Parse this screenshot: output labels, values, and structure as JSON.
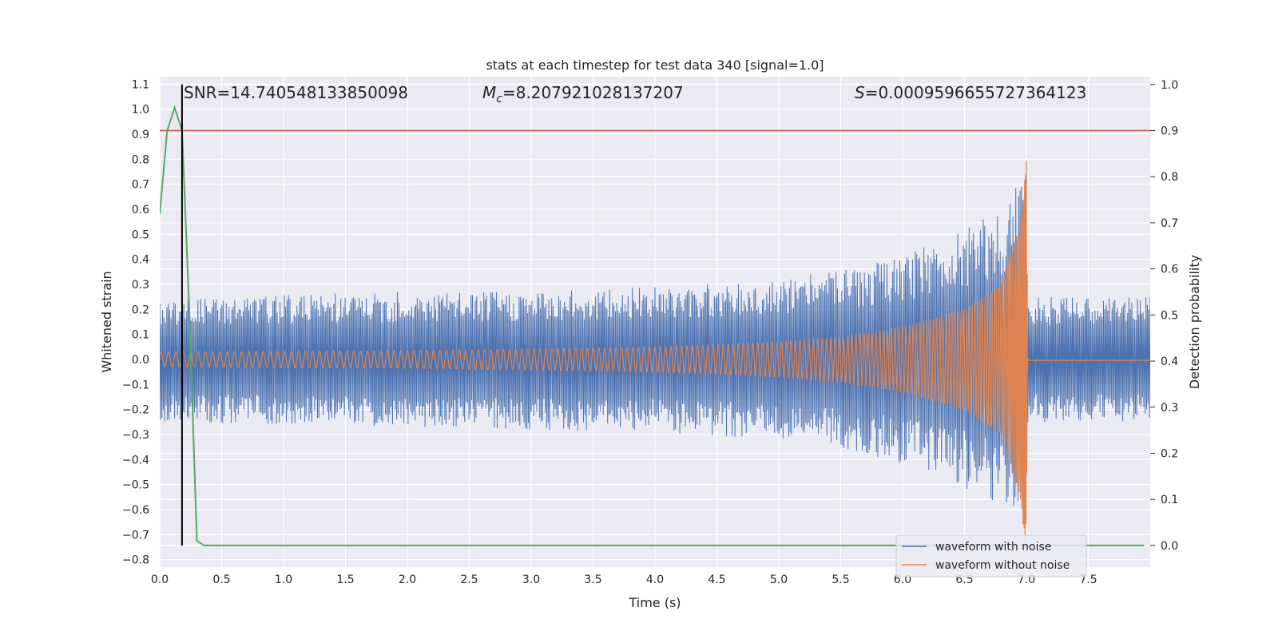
{
  "chart_data": {
    "type": "line",
    "title": "stats at each timestep for test data 340 [signal=1.0]",
    "xlabel": "Time (s)",
    "ylabel": "Whitened strain",
    "y2label": "Detection probability",
    "xlim": [
      0.0,
      8.0
    ],
    "ylim": [
      -0.83,
      1.13
    ],
    "y2lim": [
      -0.047,
      1.017
    ],
    "grid": true,
    "x_ticks": [
      0.0,
      0.5,
      1.0,
      1.5,
      2.0,
      2.5,
      3.0,
      3.5,
      4.0,
      4.5,
      5.0,
      5.5,
      6.0,
      6.5,
      7.0,
      7.5
    ],
    "x_tick_labels": [
      "0.0",
      "0.5",
      "1.0",
      "1.5",
      "2.0",
      "2.5",
      "3.0",
      "3.5",
      "4.0",
      "4.5",
      "5.0",
      "5.5",
      "6.0",
      "6.5",
      "7.0",
      "7.5"
    ],
    "y_ticks": [
      1.1,
      1.0,
      0.9,
      0.8,
      0.7,
      0.6,
      0.5,
      0.4,
      0.3,
      0.2,
      0.1,
      0.0,
      -0.1,
      -0.2,
      -0.3,
      -0.4,
      -0.5,
      -0.6,
      -0.7,
      -0.8
    ],
    "y_tick_labels": [
      "1.1",
      "1.0",
      "0.9",
      "0.8",
      "0.7",
      "0.6",
      "0.5",
      "0.4",
      "0.3",
      "0.2",
      "0.1",
      "0.0",
      "−0.1",
      "−0.2",
      "−0.3",
      "−0.4",
      "−0.5",
      "−0.6",
      "−0.7",
      "−0.8"
    ],
    "y2_ticks": [
      1.0,
      0.9,
      0.8,
      0.7,
      0.6,
      0.5,
      0.4,
      0.3,
      0.2,
      0.1,
      0.0
    ],
    "y2_tick_labels": [
      "1.0",
      "0.9",
      "0.8",
      "0.7",
      "0.6",
      "0.5",
      "0.4",
      "0.3",
      "0.2",
      "0.1",
      "0.0"
    ],
    "annotations": {
      "snr": "SNR=14.740548133850098",
      "mc_symbol": "M",
      "mc_sub": "c",
      "mc_value": "=8.207921028137207",
      "s_symbol": "S",
      "s_value": "=0.0009596655727364123"
    },
    "series": [
      {
        "name": "waveform with noise",
        "color": "#4c72b0",
        "envelope_t": [
          0.0,
          1.0,
          2.0,
          3.0,
          4.0,
          5.0,
          5.5,
          6.0,
          6.5,
          6.8,
          6.95,
          7.0,
          7.01,
          8.0
        ],
        "envelope_amp": [
          0.25,
          0.26,
          0.27,
          0.28,
          0.29,
          0.32,
          0.36,
          0.42,
          0.52,
          0.6,
          0.72,
          0.7,
          0.25,
          0.25
        ]
      },
      {
        "name": "waveform without noise",
        "color": "#dd8452",
        "envelope_t": [
          0.0,
          2.0,
          4.0,
          5.0,
          5.5,
          6.0,
          6.5,
          6.8,
          6.95,
          7.0,
          7.01,
          8.0
        ],
        "envelope_amp": [
          0.03,
          0.035,
          0.05,
          0.07,
          0.09,
          0.13,
          0.2,
          0.3,
          0.55,
          0.8,
          0.005,
          0.005
        ]
      },
      {
        "name": "detection probability",
        "axis": "y2",
        "color": "#55a868",
        "x": [
          0.0,
          0.06,
          0.12,
          0.18,
          0.24,
          0.3,
          0.36,
          0.5,
          7.95
        ],
        "y": [
          0.72,
          0.9,
          0.95,
          0.9,
          0.5,
          0.01,
          0.0,
          0.0,
          0.0
        ]
      }
    ],
    "threshold": {
      "axis": "y2",
      "y": 0.9,
      "color": "#c44e52"
    },
    "marker_vline": {
      "x": 0.18,
      "ymin": 0.0,
      "ymax": 1.0,
      "axis": "y2",
      "color": "#000000"
    },
    "legend": {
      "placement": "lower-right"
    }
  }
}
